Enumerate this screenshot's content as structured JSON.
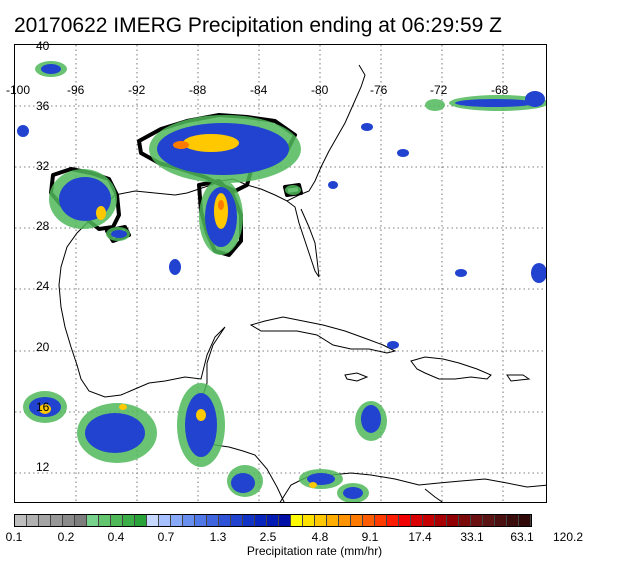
{
  "title": "20170622 IMERG Precipitation ending at 06:29:59 Z",
  "map": {
    "lon_labels": [
      "-100",
      "-96",
      "-92",
      "-88",
      "-84",
      "-80",
      "-76",
      "-72",
      "-68"
    ],
    "lat_labels": [
      "40",
      "36",
      "32",
      "28",
      "24",
      "20",
      "16",
      "12"
    ],
    "extent": {
      "lon_min": -100,
      "lon_max": -65,
      "lat_min": 10,
      "lat_max": 40
    },
    "gridlines": "dotted every 4 degrees"
  },
  "colorbar": {
    "colors": [
      "#bebebe",
      "#b1b1b1",
      "#a4a4a4",
      "#979797",
      "#8a8a8a",
      "#7d7d7d",
      "#77d38b",
      "#63c66f",
      "#4fb95a",
      "#3bae47",
      "#2aa23a",
      "#c6d8ff",
      "#a7c0ff",
      "#88a8f8",
      "#6a90ef",
      "#5078e6",
      "#3f65df",
      "#2e53d6",
      "#2143cf",
      "#1234c6",
      "#0826bd",
      "#001ab4",
      "#000fa6",
      "#fffb00",
      "#ffe200",
      "#ffc800",
      "#ffae00",
      "#ff9400",
      "#ff7a00",
      "#ff5c00",
      "#ff3c00",
      "#ff1c00",
      "#f00000",
      "#d80000",
      "#c40000",
      "#a80000",
      "#900000",
      "#7a0a0a",
      "#6a1010",
      "#5a1414",
      "#4b1010",
      "#3b0c0c",
      "#300808"
    ],
    "tick_labels": [
      "0.1",
      "0.2",
      "0.4",
      "0.7",
      "1.3",
      "2.5",
      "4.8",
      "9.1",
      "17.4",
      "33.1",
      "63.1",
      "120.2"
    ],
    "label": "Precipitation rate (mm/hr)"
  }
}
